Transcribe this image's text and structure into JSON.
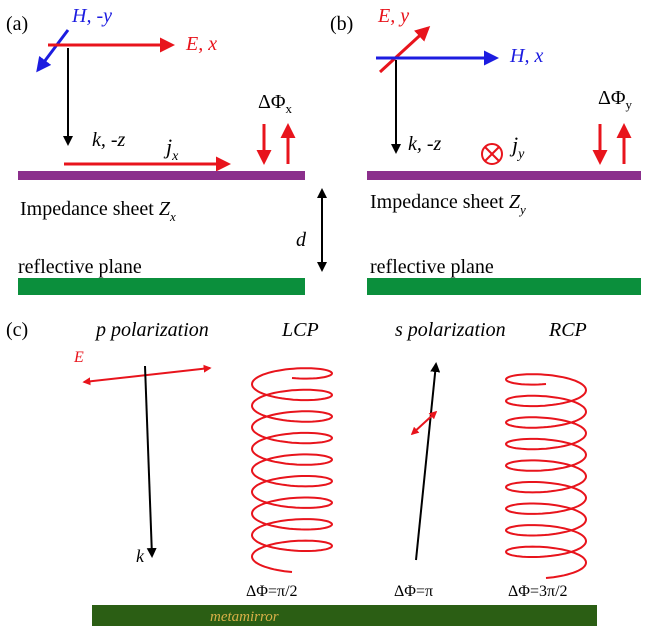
{
  "panel_a": {
    "label": "(a)",
    "h_label": "H, -y",
    "e_label": "E, x",
    "k_label": "k, -z",
    "j_label": "j",
    "j_sub": "x",
    "dphi_label": "ΔΦ",
    "dphi_sub": "x",
    "sheet_label": "Impedance sheet ",
    "z_label": "Z",
    "z_sub": "x",
    "d_label": "d",
    "plane_label": "reflective plane"
  },
  "panel_b": {
    "label": "(b)",
    "e_label": "E, y",
    "h_label": "H, x",
    "k_label": "k, -z",
    "j_label": "j",
    "j_sub": "y",
    "dphi_label": "ΔΦ",
    "dphi_sub": "y",
    "sheet_label": "Impedance sheet ",
    "z_label": "Z",
    "z_sub": "y",
    "plane_label": "reflective plane"
  },
  "panel_c": {
    "label": "(c)",
    "p_pol": "p polarization",
    "lcp": "LCP",
    "s_pol": "s polarization",
    "rcp": "RCP",
    "e_label": "E",
    "k_label": "k",
    "phase_1": "ΔΦ=π/2",
    "phase_2": "ΔΦ=π",
    "phase_3": "ΔΦ=3π/2",
    "metamirror": "metamirror"
  },
  "colors": {
    "red": "#e8141c",
    "blue": "#1c1ce0",
    "black": "#000000",
    "purple": "#8b2f8c",
    "green": "#0b8f3c",
    "dark_green": "#2b5e14",
    "gold": "#d8b048"
  }
}
